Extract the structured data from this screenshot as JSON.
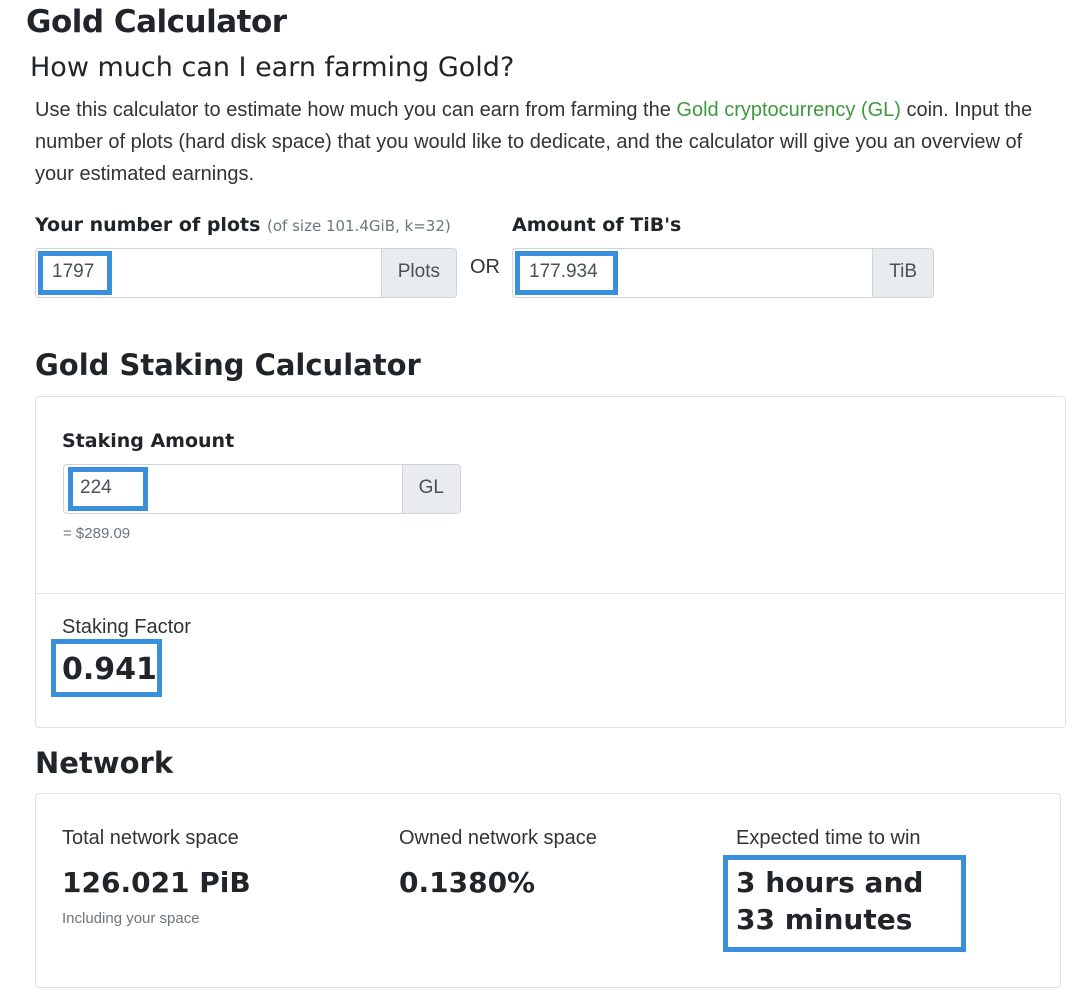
{
  "title": "Gold Calculator",
  "subtitle": "How much can I earn farming Gold?",
  "intro": {
    "pre": "Use this calculator to estimate how much you can earn from farming the ",
    "link": "Gold cryptocurrency (GL)",
    "post": " coin. Input the number of plots (hard disk space) that you would like to dedicate, and the calculator will give you an overview of your estimated earnings."
  },
  "plots": {
    "label": "Your number of plots",
    "hint": "(of size 101.4GiB, k=32)",
    "value": "1797",
    "unit": "Plots"
  },
  "or": "OR",
  "tib": {
    "label": "Amount of TiB's",
    "value": "177.934",
    "unit": "TiB"
  },
  "staking": {
    "heading": "Gold Staking Calculator",
    "label": "Staking Amount",
    "value": "224",
    "unit": "GL",
    "usd": "= $289.09",
    "factor_label": "Staking Factor",
    "factor": "0.941"
  },
  "network": {
    "heading": "Network",
    "total_label": "Total network space",
    "total": "126.021 PiB",
    "total_note": "Including your space",
    "owned_label": "Owned network space",
    "owned": "0.1380%",
    "time_label": "Expected time to win",
    "time": "3 hours and 33 minutes"
  },
  "colors": {
    "link": "#3c9a3c",
    "highlight": "#3a8fdd"
  }
}
